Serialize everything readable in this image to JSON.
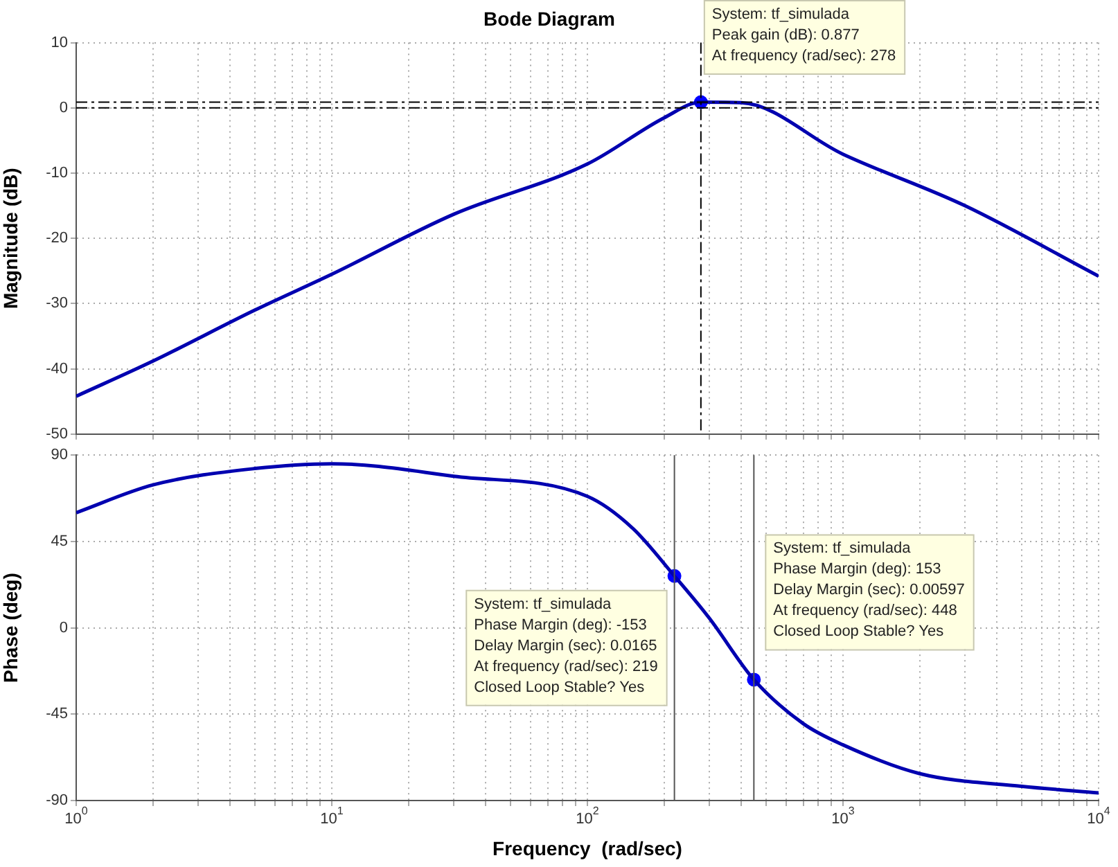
{
  "chart_data": [
    {
      "type": "line",
      "title": "Bode Diagram",
      "ylabel": "Magnitude (dB)",
      "log": "x",
      "grid": true,
      "tick_labels": "y",
      "xlim": [
        1,
        10000
      ],
      "xticks": [
        {
          "value": 1,
          "label": null
        },
        {
          "value": 2,
          "label": null
        },
        {
          "value": 3,
          "label": null
        },
        {
          "value": 4,
          "label": null
        },
        {
          "value": 5,
          "label": null
        },
        {
          "value": 6,
          "label": null
        },
        {
          "value": 7,
          "label": null
        },
        {
          "value": 8,
          "label": null
        },
        {
          "value": 9,
          "label": null
        },
        {
          "value": 10,
          "label": null
        },
        {
          "value": 20,
          "label": null
        },
        {
          "value": 30,
          "label": null
        },
        {
          "value": 40,
          "label": null
        },
        {
          "value": 50,
          "label": null
        },
        {
          "value": 60,
          "label": null
        },
        {
          "value": 70,
          "label": null
        },
        {
          "value": 80,
          "label": null
        },
        {
          "value": 90,
          "label": null
        },
        {
          "value": 100,
          "label": null
        },
        {
          "value": 200,
          "label": null
        },
        {
          "value": 300,
          "label": null
        },
        {
          "value": 400,
          "label": null
        },
        {
          "value": 500,
          "label": null
        },
        {
          "value": 600,
          "label": null
        },
        {
          "value": 700,
          "label": null
        },
        {
          "value": 800,
          "label": null
        },
        {
          "value": 900,
          "label": null
        },
        {
          "value": 1000,
          "label": null
        },
        {
          "value": 2000,
          "label": null
        },
        {
          "value": 3000,
          "label": null
        },
        {
          "value": 4000,
          "label": null
        },
        {
          "value": 5000,
          "label": null
        },
        {
          "value": 6000,
          "label": null
        },
        {
          "value": 7000,
          "label": null
        },
        {
          "value": 8000,
          "label": null
        },
        {
          "value": 9000,
          "label": null
        },
        {
          "value": 10000,
          "label": null
        }
      ],
      "ylim": [
        -50,
        10
      ],
      "yticks": [
        -50,
        -40,
        -30,
        -20,
        -10,
        0,
        10
      ],
      "series": [
        {
          "type": "line",
          "color": "#0000b0",
          "x": [
            1,
            2,
            5,
            10,
            30,
            100,
            200,
            278,
            400,
            1000,
            3000,
            10000
          ],
          "values": [
            -44.2,
            -38.8,
            -31,
            -25.5,
            -16.3,
            -8.6,
            -1.5,
            0.877,
            0.8,
            -7.1,
            -15,
            -25.8
          ]
        },
        {
          "type": "scatter",
          "color": "#0000ff",
          "x": [
            278
          ],
          "values": [
            0.877
          ]
        }
      ],
      "ref_lines": [
        {
          "axis": "y",
          "value": 0.877,
          "line_style": "dashed",
          "color": "#000000"
        },
        {
          "axis": "y",
          "value": 0,
          "line_style": "dashed",
          "color": "#000000"
        },
        {
          "axis": "x",
          "value": 278,
          "line_style": "dashed",
          "color": "#000000"
        }
      ],
      "annotations": [
        {
          "text": "System: tf_simulada\nPeak gain (dB): 0.877\nAt frequency (rad/sec): 278",
          "x": 278,
          "y": 0.877
        }
      ]
    },
    {
      "type": "line",
      "xlabel": "Frequency  (rad/sec)",
      "ylabel": "Phase (deg)",
      "log": "x",
      "grid": true,
      "xlim": [
        1,
        10000
      ],
      "xticks": [
        {
          "value": 1,
          "label": "10$^{0}$"
        },
        {
          "value": 2,
          "label": null
        },
        {
          "value": 3,
          "label": null
        },
        {
          "value": 4,
          "label": null
        },
        {
          "value": 5,
          "label": null
        },
        {
          "value": 6,
          "label": null
        },
        {
          "value": 7,
          "label": null
        },
        {
          "value": 8,
          "label": null
        },
        {
          "value": 9,
          "label": null
        },
        {
          "value": 10,
          "label": "10$^{1}$"
        },
        {
          "value": 20,
          "label": null
        },
        {
          "value": 30,
          "label": null
        },
        {
          "value": 40,
          "label": null
        },
        {
          "value": 50,
          "label": null
        },
        {
          "value": 60,
          "label": null
        },
        {
          "value": 70,
          "label": null
        },
        {
          "value": 80,
          "label": null
        },
        {
          "value": 90,
          "label": null
        },
        {
          "value": 100,
          "label": "10$^{2}$"
        },
        {
          "value": 200,
          "label": null
        },
        {
          "value": 300,
          "label": null
        },
        {
          "value": 400,
          "label": null
        },
        {
          "value": 500,
          "label": null
        },
        {
          "value": 600,
          "label": null
        },
        {
          "value": 700,
          "label": null
        },
        {
          "value": 800,
          "label": null
        },
        {
          "value": 900,
          "label": null
        },
        {
          "value": 1000,
          "label": "10$^{3}$"
        },
        {
          "value": 2000,
          "label": null
        },
        {
          "value": 3000,
          "label": null
        },
        {
          "value": 4000,
          "label": null
        },
        {
          "value": 5000,
          "label": null
        },
        {
          "value": 6000,
          "label": null
        },
        {
          "value": 7000,
          "label": null
        },
        {
          "value": 8000,
          "label": null
        },
        {
          "value": 9000,
          "label": null
        },
        {
          "value": 10000,
          "label": "10$^{4}$"
        }
      ],
      "ylim": [
        -90,
        90
      ],
      "yticks": [
        -90,
        -45,
        0,
        45,
        90
      ],
      "series": [
        {
          "type": "line",
          "color": "#0000b0",
          "x": [
            1,
            2,
            5,
            10,
            30,
            100,
            150,
            219,
            300,
            448,
            700,
            1000,
            2000,
            5000,
            10000
          ],
          "values": [
            60,
            74.5,
            83,
            85.5,
            79,
            68.5,
            52,
            27,
            5,
            -27,
            -50,
            -61,
            -76,
            -82.6,
            -86
          ]
        },
        {
          "type": "scatter",
          "color": "#0000ff",
          "x": [
            219,
            448
          ],
          "values": [
            27,
            -27
          ]
        }
      ],
      "ref_lines": [
        {
          "axis": "x",
          "value": 219,
          "color": "#555555"
        },
        {
          "axis": "x",
          "value": 448,
          "color": "#555555"
        }
      ],
      "annotations": [
        {
          "text": "System: tf_simulada\nPhase Margin (deg): -153\nDelay Margin (sec): 0.0165\nAt frequency (rad/sec): 219\nClosed Loop Stable? Yes",
          "x": 219,
          "y": 27
        },
        {
          "text": "System: tf_simulada\nPhase Margin (deg): 153\nDelay Margin (sec): 0.00597\nAt frequency (rad/sec): 448\nClosed Loop Stable? Yes",
          "x": 448,
          "y": -27
        }
      ]
    }
  ]
}
